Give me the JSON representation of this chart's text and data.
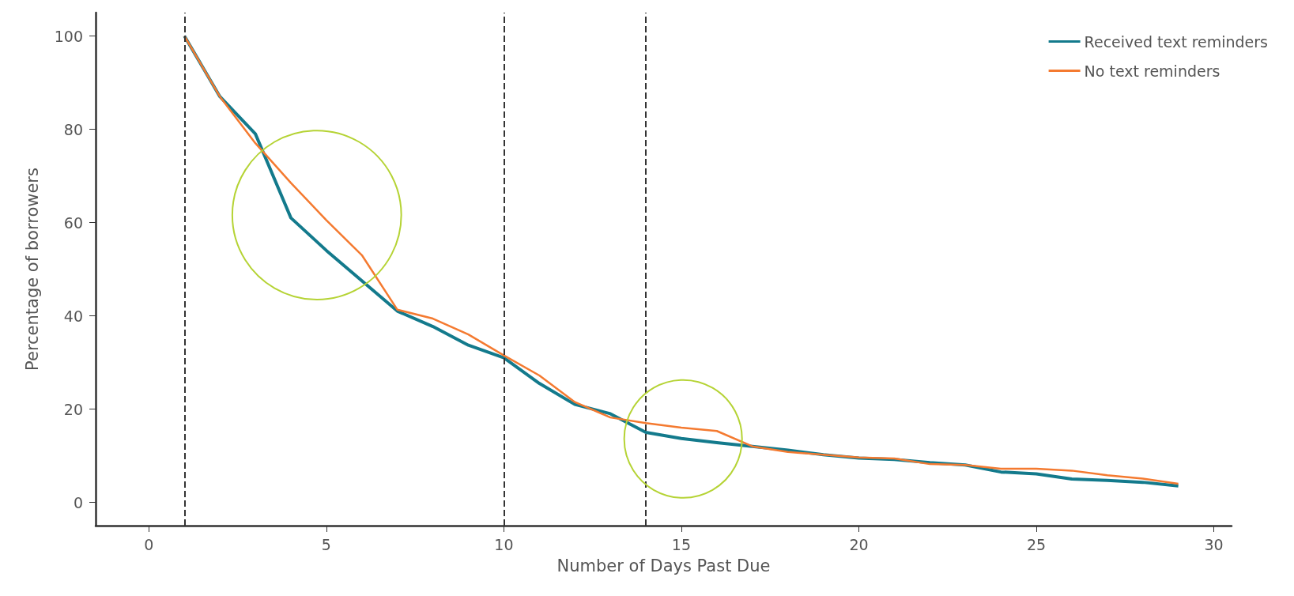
{
  "chart_data": {
    "type": "line",
    "xlabel": "Number of Days Past Due",
    "ylabel": "Percentage of borrowers",
    "x": [
      1,
      2,
      3,
      4,
      5,
      6,
      7,
      8,
      9,
      10,
      11,
      12,
      13,
      14,
      15,
      16,
      17,
      18,
      19,
      20,
      21,
      22,
      23,
      24,
      25,
      26,
      27,
      28,
      29
    ],
    "series": [
      {
        "name": "Received text reminders",
        "color": "#137a8c",
        "values": [
          100,
          87,
          79,
          61,
          54,
          47.5,
          41,
          37.7,
          33.7,
          31,
          25.5,
          21,
          19,
          15,
          13.7,
          12.8,
          12,
          11.2,
          10.2,
          9.5,
          9.2,
          8.5,
          8,
          6.5,
          6.1,
          5,
          4.7,
          4.3,
          3.5
        ]
      },
      {
        "name": "No text reminders",
        "color": "#f47a30",
        "values": [
          100,
          87,
          77,
          68.5,
          60.5,
          53,
          41.3,
          39.4,
          36,
          31.5,
          27.2,
          21.5,
          18.2,
          17,
          16,
          15.3,
          12,
          10.8,
          10.2,
          9.6,
          9.4,
          8.2,
          8,
          7.2,
          7.2,
          6.8,
          5.8,
          5.1,
          4
        ]
      }
    ],
    "xlim": [
      -1.5,
      30.5
    ],
    "xticks": [
      0,
      5,
      10,
      15,
      20,
      25,
      30
    ],
    "ylim": [
      -5,
      105
    ],
    "yticks": [
      0,
      20,
      40,
      60,
      80,
      100
    ],
    "ref_lines": [
      {
        "axis": "x",
        "value": 1,
        "color": "#333333",
        "line_style": "dashed"
      },
      {
        "axis": "x",
        "value": 10,
        "color": "#333333",
        "line_style": "dashed"
      },
      {
        "axis": "x",
        "value": 14,
        "color": "#333333",
        "line_style": "dashed"
      }
    ],
    "grid": false,
    "legend": "top right",
    "marker": "none",
    "line_style": "solid"
  }
}
